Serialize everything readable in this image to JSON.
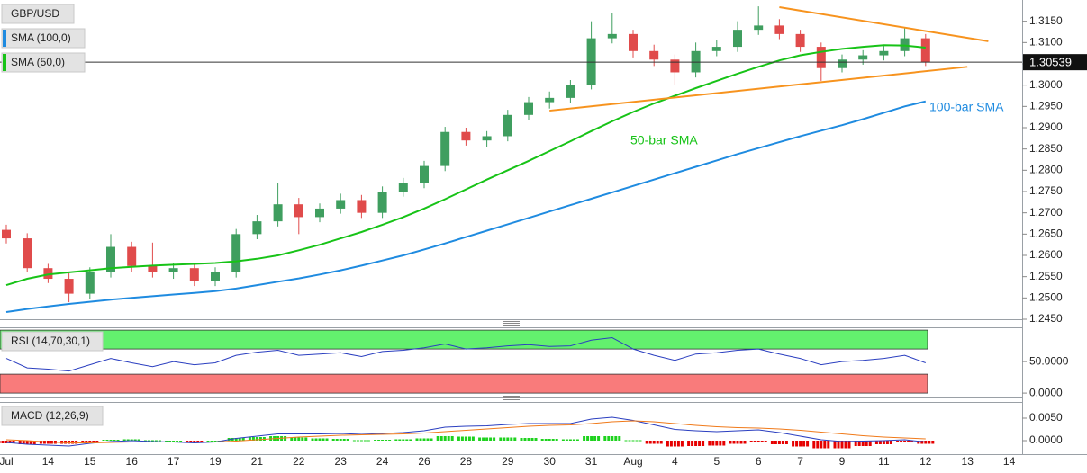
{
  "chart_data": [
    {
      "type": "candlestick",
      "title": "GBP/USD",
      "categories": [
        "Jul",
        null,
        "14",
        null,
        "15",
        null,
        "16",
        null,
        "17",
        null,
        "19",
        null,
        "21",
        null,
        "22",
        null,
        "23",
        null,
        "24",
        null,
        "26",
        null,
        "28",
        null,
        "29",
        null,
        "30",
        null,
        "31",
        null,
        "Aug",
        null,
        "4",
        null,
        "5",
        null,
        "6",
        null,
        "7",
        null,
        "9",
        null,
        "11",
        null,
        "12",
        null,
        "13",
        null,
        "14"
      ],
      "open": [
        1.266,
        1.264,
        1.257,
        1.2545,
        1.251,
        1.256,
        1.262,
        1.2575,
        1.256,
        1.257,
        1.254,
        1.256,
        1.265,
        1.268,
        1.272,
        1.269,
        1.271,
        1.273,
        1.27,
        1.275,
        1.277,
        1.281,
        1.289,
        1.287,
        1.288,
        1.293,
        1.296,
        1.297,
        1.3,
        1.311,
        1.312,
        1.308,
        1.306,
        1.303,
        1.308,
        1.309,
        1.313,
        1.314,
        1.312,
        1.309,
        1.304,
        1.306,
        1.307,
        1.308,
        1.311,
        null,
        null,
        null,
        null
      ],
      "high": [
        1.2672,
        1.2652,
        1.258,
        1.2558,
        1.2572,
        1.265,
        1.2632,
        1.263,
        1.2582,
        1.258,
        1.2572,
        1.2662,
        1.2695,
        1.277,
        1.2735,
        1.2722,
        1.2745,
        1.2742,
        1.2762,
        1.2782,
        1.2822,
        1.2902,
        1.29,
        1.2892,
        1.2942,
        1.2972,
        1.2985,
        1.3012,
        1.315,
        1.317,
        1.313,
        1.3095,
        1.3072,
        1.31,
        1.3105,
        1.315,
        1.3185,
        1.3155,
        1.313,
        1.31,
        1.3072,
        1.3082,
        1.3092,
        1.3135,
        1.312,
        null,
        null,
        null,
        null
      ],
      "low": [
        1.2628,
        1.256,
        1.2535,
        1.249,
        1.2498,
        1.2548,
        1.2562,
        1.2548,
        1.2545,
        1.2528,
        1.2528,
        1.2548,
        1.2638,
        1.2668,
        1.265,
        1.2678,
        1.2698,
        1.2688,
        1.2688,
        1.2738,
        1.2758,
        1.2798,
        1.2858,
        1.2855,
        1.2868,
        1.2918,
        1.2945,
        1.2958,
        1.299,
        1.3098,
        1.3065,
        1.3045,
        1.3,
        1.3018,
        1.3068,
        1.3078,
        1.3118,
        1.3108,
        1.3078,
        1.301,
        1.303,
        1.3048,
        1.3058,
        1.3068,
        1.3045,
        null,
        null,
        null,
        null
      ],
      "close": [
        1.264,
        1.257,
        1.2545,
        1.251,
        1.256,
        1.262,
        1.2575,
        1.256,
        1.257,
        1.254,
        1.256,
        1.265,
        1.268,
        1.272,
        1.269,
        1.271,
        1.273,
        1.27,
        1.275,
        1.277,
        1.281,
        1.289,
        1.287,
        1.288,
        1.293,
        1.296,
        1.297,
        1.3,
        1.311,
        1.312,
        1.308,
        1.306,
        1.303,
        1.308,
        1.309,
        1.313,
        1.314,
        1.312,
        1.309,
        1.304,
        1.306,
        1.307,
        1.308,
        1.311,
        1.3054,
        null,
        null,
        null,
        null
      ],
      "up_color": "#3f9e5f",
      "down_color": "#e04b4b",
      "series": [
        {
          "name": "SMA (100,0)",
          "color": "#1f8be0",
          "values": [
            1.2467,
            1.2474,
            1.248,
            1.2486,
            1.2491,
            1.2496,
            1.25,
            1.2504,
            1.2508,
            1.2512,
            1.2516,
            1.2522,
            1.253,
            1.2538,
            1.2546,
            1.2555,
            1.2565,
            1.2576,
            1.2588,
            1.26,
            1.2614,
            1.2628,
            1.2643,
            1.2658,
            1.2673,
            1.2688,
            1.2703,
            1.2718,
            1.2733,
            1.2748,
            1.2763,
            1.2778,
            1.2793,
            1.2808,
            1.2823,
            1.2838,
            1.2852,
            1.2866,
            1.288,
            1.2893,
            1.2906,
            1.292,
            1.2935,
            1.295,
            1.2962,
            null,
            null,
            null,
            null
          ]
        },
        {
          "name": "SMA (50,0)",
          "color": "#17c317",
          "values": [
            1.253,
            1.2545,
            1.2555,
            1.256,
            1.2565,
            1.257,
            1.2573,
            1.2576,
            1.2578,
            1.258,
            1.2582,
            1.2586,
            1.2592,
            1.26,
            1.2612,
            1.2625,
            1.264,
            1.2655,
            1.2672,
            1.269,
            1.271,
            1.2732,
            1.2755,
            1.2778,
            1.28,
            1.2822,
            1.2845,
            1.2868,
            1.2892,
            1.2915,
            1.2937,
            1.2957,
            1.2975,
            1.2993,
            1.301,
            1.3027,
            1.3043,
            1.3058,
            1.307,
            1.3078,
            1.3085,
            1.309,
            1.3094,
            1.3093,
            1.3088,
            null,
            null,
            null,
            null
          ]
        }
      ],
      "trendlines": [
        {
          "color": "#f7931e",
          "x": [
            37,
            47
          ],
          "values": [
            1.3183,
            1.3103
          ]
        },
        {
          "color": "#f7931e",
          "x": [
            26,
            46
          ],
          "values": [
            1.294,
            1.3043
          ]
        }
      ],
      "annotations": [
        {
          "text": "100-bar SMA",
          "color": "#1f8be0"
        },
        {
          "text": "50-bar SMA",
          "color": "#17c317"
        }
      ],
      "last_price": {
        "value": 1.30539,
        "label": "1.30539"
      },
      "ylim": [
        1.245,
        1.32
      ],
      "yticks": [
        {
          "value": 1.245,
          "label": "1.2450"
        },
        {
          "value": 1.25,
          "label": "1.2500"
        },
        {
          "value": 1.255,
          "label": "1.2550"
        },
        {
          "value": 1.26,
          "label": "1.2600"
        },
        {
          "value": 1.265,
          "label": "1.2650"
        },
        {
          "value": 1.27,
          "label": "1.2700"
        },
        {
          "value": 1.275,
          "label": "1.2750"
        },
        {
          "value": 1.28,
          "label": "1.2800"
        },
        {
          "value": 1.285,
          "label": "1.2850"
        },
        {
          "value": 1.29,
          "label": "1.2900"
        },
        {
          "value": 1.295,
          "label": "1.2950"
        },
        {
          "value": 1.3,
          "label": "1.3000"
        },
        {
          "value": 1.305,
          "label": "1.3050"
        },
        {
          "value": 1.31,
          "label": "1.3100"
        },
        {
          "value": 1.315,
          "label": "1.3150"
        }
      ]
    },
    {
      "type": "line",
      "title": "RSI (14,70,30,1)",
      "color": "#2b3fc0",
      "values": [
        55,
        40,
        38,
        35,
        45,
        55,
        48,
        42,
        50,
        45,
        48,
        60,
        65,
        68,
        60,
        62,
        64,
        58,
        66,
        68,
        72,
        78,
        70,
        72,
        75,
        77,
        74,
        75,
        84,
        88,
        70,
        60,
        52,
        62,
        64,
        68,
        70,
        62,
        55,
        45,
        50,
        52,
        55,
        60,
        48,
        null,
        null,
        null,
        null
      ],
      "bands": [
        {
          "range": [
            70,
            100
          ],
          "color": "#63f06e"
        },
        {
          "range": [
            0,
            30
          ],
          "color": "#f97b7b"
        }
      ],
      "ylim": [
        -7,
        103
      ],
      "yticks": [
        {
          "value": 50,
          "label": "50.0000"
        },
        {
          "value": 0,
          "label": "0.0000"
        }
      ]
    },
    {
      "type": "macd",
      "title": "MACD (12,26,9)",
      "series": [
        {
          "name": "MACD",
          "color": "#2b3fc0",
          "values": [
            -0.0004,
            -0.0008,
            -0.001,
            -0.0012,
            -0.0006,
            -0.0002,
            0.0,
            -0.0002,
            -0.0003,
            -0.0005,
            -0.0003,
            0.0005,
            0.001,
            0.0015,
            0.0015,
            0.0015,
            0.0016,
            0.0014,
            0.0016,
            0.0018,
            0.0022,
            0.003,
            0.0032,
            0.0033,
            0.0036,
            0.0038,
            0.0038,
            0.0038,
            0.0048,
            0.0052,
            0.0045,
            0.0035,
            0.0025,
            0.0022,
            0.002,
            0.0022,
            0.0024,
            0.0018,
            0.001,
            0.0002,
            -0.0002,
            -0.0001,
            0.0,
            0.0002,
            -0.0003,
            null,
            null,
            null,
            null
          ]
        },
        {
          "name": "Signal",
          "color": "#f07a1a",
          "values": [
            0.0002,
            0.0,
            -0.0003,
            -0.0005,
            -0.0005,
            -0.0004,
            -0.0003,
            -0.0003,
            -0.0003,
            -0.0003,
            -0.0003,
            -0.0001,
            0.0002,
            0.0005,
            0.0008,
            0.001,
            0.0012,
            0.0013,
            0.0014,
            0.0015,
            0.0017,
            0.002,
            0.0023,
            0.0026,
            0.0029,
            0.0032,
            0.0034,
            0.0035,
            0.0038,
            0.0042,
            0.0044,
            0.0042,
            0.0038,
            0.0034,
            0.0031,
            0.0029,
            0.0028,
            0.0026,
            0.0023,
            0.0019,
            0.0015,
            0.0011,
            0.0008,
            0.0006,
            0.0004,
            null,
            null,
            null,
            null
          ]
        }
      ],
      "histogram": [
        -0.0006,
        -0.0008,
        -0.0007,
        -0.0007,
        -0.0001,
        0.0002,
        0.0003,
        0.0001,
        0.0,
        -0.0002,
        0.0,
        0.0006,
        0.0008,
        0.001,
        0.0007,
        0.0005,
        0.0004,
        0.0001,
        0.0002,
        0.0003,
        0.0005,
        0.001,
        0.0009,
        0.0007,
        0.0007,
        0.0006,
        0.0004,
        0.0003,
        0.001,
        0.001,
        0.0001,
        -0.0007,
        -0.0013,
        -0.0012,
        -0.0011,
        -0.0007,
        -0.0004,
        -0.0008,
        -0.0013,
        -0.0017,
        -0.0017,
        -0.0012,
        -0.0008,
        -0.0004,
        -0.0007,
        null,
        null,
        null,
        null
      ],
      "histogram_up_color": "#1ed21e",
      "histogram_down_color": "#e60000",
      "ylim": [
        -0.003,
        0.0084
      ],
      "yticks": [
        {
          "value": 0.005,
          "label": "0.0050"
        },
        {
          "value": 0,
          "label": "0.0000"
        }
      ]
    }
  ]
}
